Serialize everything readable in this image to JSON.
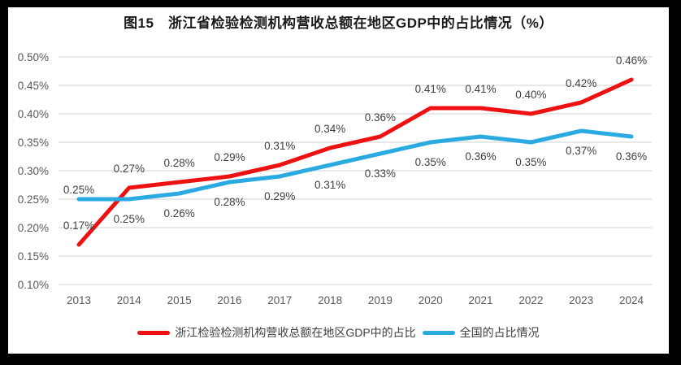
{
  "title": "图15　浙江省检验检测机构营收总额在地区GDP中的占比情况（%）",
  "chart_data": {
    "type": "line",
    "categories": [
      "2013",
      "2014",
      "2015",
      "2016",
      "2017",
      "2018",
      "2019",
      "2020",
      "2021",
      "2022",
      "2023",
      "2024"
    ],
    "series": [
      {
        "id": "zhejiang",
        "name": "浙江检验检测机构营收总额在地区GDP中的占比",
        "color": "#EE1111",
        "values": [
          0.17,
          0.27,
          0.28,
          0.29,
          0.31,
          0.34,
          0.36,
          0.41,
          0.41,
          0.4,
          0.42,
          0.46
        ],
        "labels": [
          "0.17%",
          "0.27%",
          "0.28%",
          "0.29%",
          "0.31%",
          "0.34%",
          "0.36%",
          "0.41%",
          "0.41%",
          "0.40%",
          "0.42%",
          "0.46%"
        ],
        "label_side": "above"
      },
      {
        "id": "national",
        "name": "全国的占比情况",
        "color": "#2BAAE2",
        "values": [
          0.25,
          0.25,
          0.26,
          0.28,
          0.29,
          0.31,
          0.33,
          0.35,
          0.36,
          0.35,
          0.37,
          0.36
        ],
        "labels": [
          "0.25%",
          "0.25%",
          "0.26%",
          "0.28%",
          "0.29%",
          "0.31%",
          "0.33%",
          "0.35%",
          "0.36%",
          "0.35%",
          "0.37%",
          "0.36%"
        ],
        "label_side": "below",
        "label_side_overrides": {
          "0": "above-tight"
        }
      }
    ],
    "xlabel": "",
    "ylabel": "",
    "ylim": [
      0.1,
      0.5
    ],
    "y_step": 0.05,
    "y_ticks": [
      "0.50%",
      "0.45%",
      "0.40%",
      "0.35%",
      "0.30%",
      "0.25%",
      "0.20%",
      "0.15%",
      "0.10%"
    ],
    "grid": true,
    "legend_position": "bottom",
    "line_width": 5,
    "colors": {
      "grid": "#D9D9D9",
      "tick_text": "#595959",
      "data_label_text": "#404040",
      "background": "#FFFFFF",
      "frame": "#000000"
    }
  }
}
